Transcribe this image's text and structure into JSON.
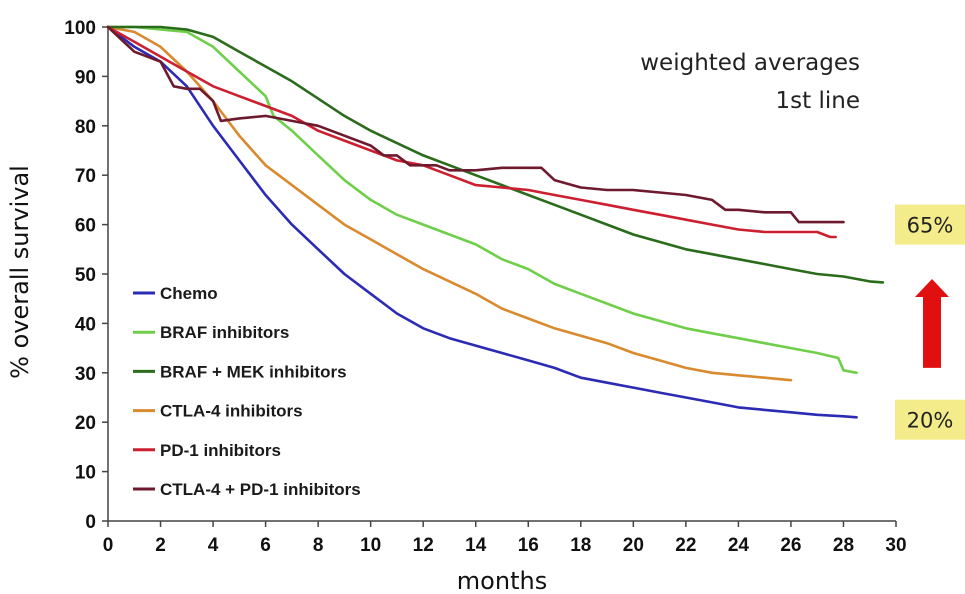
{
  "chart_data": {
    "type": "line",
    "annotation": [
      "weighted averages",
      "1st line"
    ],
    "xlabel": "months",
    "ylabel": "% overall survival",
    "xlim": [
      0,
      30
    ],
    "ylim": [
      0,
      100
    ],
    "x_ticks": [
      "0",
      "2",
      "4",
      "6",
      "8",
      "10",
      "12",
      "14",
      "16",
      "18",
      "20",
      "22",
      "24",
      "26",
      "28",
      "30"
    ],
    "y_ticks": [
      "0",
      "10",
      "20",
      "30",
      "40",
      "50",
      "60",
      "70",
      "80",
      "90",
      "100"
    ],
    "grid": false,
    "legend_position": "lower-left",
    "callouts": [
      {
        "text": "65%",
        "y": 60,
        "bg": "#f4ec8a"
      },
      {
        "text": "20%",
        "y": 20.5,
        "bg": "#f4ec8a"
      }
    ],
    "arrow": {
      "direction": "up",
      "color": "#e01010",
      "y_from": 31,
      "y_to": 49
    },
    "series": [
      {
        "name": "Chemo",
        "color": "#2b2bb3",
        "points": [
          [
            0,
            100
          ],
          [
            1,
            96
          ],
          [
            2,
            93
          ],
          [
            3,
            88
          ],
          [
            4,
            80
          ],
          [
            5,
            73
          ],
          [
            6,
            66
          ],
          [
            7,
            60
          ],
          [
            8,
            55
          ],
          [
            9,
            50
          ],
          [
            10,
            46
          ],
          [
            11,
            42
          ],
          [
            12,
            39
          ],
          [
            13,
            37
          ],
          [
            14,
            35.5
          ],
          [
            15,
            34
          ],
          [
            16,
            32.5
          ],
          [
            17,
            31
          ],
          [
            18,
            29
          ],
          [
            19,
            28
          ],
          [
            20,
            27
          ],
          [
            21,
            26
          ],
          [
            22,
            25
          ],
          [
            23,
            24
          ],
          [
            24,
            23
          ],
          [
            25,
            22.5
          ],
          [
            26,
            22
          ],
          [
            27,
            21.5
          ],
          [
            28,
            21.2
          ],
          [
            28.5,
            21
          ]
        ]
      },
      {
        "name": "BRAF inhibitors",
        "color": "#6fcf4a",
        "points": [
          [
            0,
            100
          ],
          [
            1,
            100
          ],
          [
            2,
            99.5
          ],
          [
            3,
            99
          ],
          [
            4,
            96
          ],
          [
            5,
            91
          ],
          [
            6,
            86
          ],
          [
            6.3,
            82
          ],
          [
            7,
            79
          ],
          [
            8,
            74
          ],
          [
            9,
            69
          ],
          [
            10,
            65
          ],
          [
            11,
            62
          ],
          [
            12,
            60
          ],
          [
            13,
            58
          ],
          [
            14,
            56
          ],
          [
            15,
            53
          ],
          [
            16,
            51
          ],
          [
            17,
            48
          ],
          [
            18,
            46
          ],
          [
            19,
            44
          ],
          [
            20,
            42
          ],
          [
            21,
            40.5
          ],
          [
            22,
            39
          ],
          [
            23,
            38
          ],
          [
            24,
            37
          ],
          [
            25,
            36
          ],
          [
            26,
            35
          ],
          [
            27,
            34
          ],
          [
            27.8,
            33
          ],
          [
            28,
            30.5
          ],
          [
            28.5,
            30
          ]
        ]
      },
      {
        "name": "BRAF + MEK inhibitors",
        "color": "#2a6b1c",
        "points": [
          [
            0,
            100
          ],
          [
            1,
            100
          ],
          [
            2,
            100
          ],
          [
            3,
            99.5
          ],
          [
            4,
            98
          ],
          [
            5,
            95
          ],
          [
            6,
            92
          ],
          [
            7,
            89
          ],
          [
            8,
            85.5
          ],
          [
            9,
            82
          ],
          [
            10,
            79
          ],
          [
            11,
            76.5
          ],
          [
            12,
            74
          ],
          [
            13,
            72
          ],
          [
            14,
            70
          ],
          [
            15,
            68
          ],
          [
            16,
            66
          ],
          [
            17,
            64
          ],
          [
            18,
            62
          ],
          [
            19,
            60
          ],
          [
            20,
            58
          ],
          [
            21,
            56.5
          ],
          [
            22,
            55
          ],
          [
            23,
            54
          ],
          [
            24,
            53
          ],
          [
            25,
            52
          ],
          [
            26,
            51
          ],
          [
            27,
            50
          ],
          [
            28,
            49.5
          ],
          [
            29,
            48.5
          ],
          [
            29.5,
            48.3
          ]
        ]
      },
      {
        "name": "CTLA-4 inhibitors",
        "color": "#d98a2e",
        "points": [
          [
            0,
            100
          ],
          [
            1,
            99
          ],
          [
            2,
            96
          ],
          [
            3,
            91
          ],
          [
            4,
            85
          ],
          [
            5,
            78
          ],
          [
            6,
            72
          ],
          [
            7,
            68
          ],
          [
            8,
            64
          ],
          [
            9,
            60
          ],
          [
            10,
            57
          ],
          [
            11,
            54
          ],
          [
            12,
            51
          ],
          [
            13,
            48.5
          ],
          [
            14,
            46
          ],
          [
            15,
            43
          ],
          [
            16,
            41
          ],
          [
            17,
            39
          ],
          [
            18,
            37.5
          ],
          [
            19,
            36
          ],
          [
            20,
            34
          ],
          [
            21,
            32.5
          ],
          [
            22,
            31
          ],
          [
            23,
            30
          ],
          [
            24,
            29.5
          ],
          [
            25,
            29
          ],
          [
            26,
            28.5
          ]
        ]
      },
      {
        "name": "PD-1 inhibitors",
        "color": "#cc2030",
        "points": [
          [
            0,
            100
          ],
          [
            1,
            97
          ],
          [
            2,
            94
          ],
          [
            3,
            91
          ],
          [
            4,
            88
          ],
          [
            5,
            86
          ],
          [
            6,
            84
          ],
          [
            7,
            82
          ],
          [
            8,
            79
          ],
          [
            9,
            77
          ],
          [
            10,
            75
          ],
          [
            11,
            73
          ],
          [
            12,
            72
          ],
          [
            13,
            70
          ],
          [
            14,
            68
          ],
          [
            15,
            67.5
          ],
          [
            16,
            67
          ],
          [
            17,
            66
          ],
          [
            18,
            65
          ],
          [
            19,
            64
          ],
          [
            20,
            63
          ],
          [
            21,
            62
          ],
          [
            22,
            61
          ],
          [
            23,
            60
          ],
          [
            24,
            59
          ],
          [
            25,
            58.5
          ],
          [
            26,
            58.5
          ],
          [
            27,
            58.5
          ],
          [
            27.5,
            57.5
          ],
          [
            27.7,
            57.5
          ]
        ]
      },
      {
        "name": "CTLA-4 + PD-1 inhibitors",
        "color": "#6e1a2e",
        "points": [
          [
            0,
            100
          ],
          [
            1,
            95
          ],
          [
            2,
            93
          ],
          [
            2.5,
            88
          ],
          [
            3,
            87.5
          ],
          [
            3.5,
            87.5
          ],
          [
            4,
            85
          ],
          [
            4.3,
            81
          ],
          [
            5,
            81.5
          ],
          [
            6,
            82
          ],
          [
            7,
            81
          ],
          [
            8,
            80
          ],
          [
            9,
            78
          ],
          [
            10,
            76
          ],
          [
            10.5,
            74
          ],
          [
            11,
            74
          ],
          [
            11.5,
            72
          ],
          [
            12,
            72
          ],
          [
            12.5,
            72
          ],
          [
            13,
            71
          ],
          [
            14,
            71
          ],
          [
            15,
            71.5
          ],
          [
            16,
            71.5
          ],
          [
            16.5,
            71.5
          ],
          [
            17,
            69
          ],
          [
            18,
            67.5
          ],
          [
            19,
            67
          ],
          [
            20,
            67
          ],
          [
            21,
            66.5
          ],
          [
            22,
            66
          ],
          [
            23,
            65
          ],
          [
            23.5,
            63
          ],
          [
            24,
            63
          ],
          [
            25,
            62.5
          ],
          [
            26,
            62.5
          ],
          [
            26.3,
            60.5
          ],
          [
            27,
            60.5
          ],
          [
            28,
            60.5
          ]
        ]
      }
    ]
  }
}
